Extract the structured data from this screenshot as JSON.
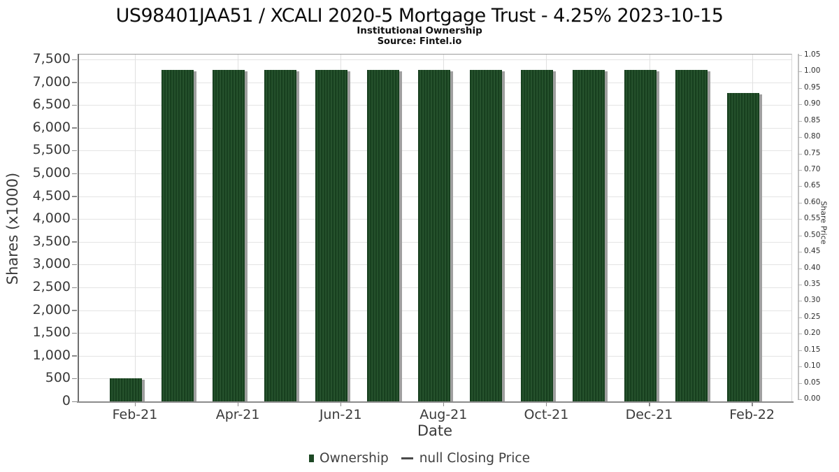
{
  "title": "US98401JAA51 / XCALI 2020-5 Mortgage Trust - 4.25% 2023-10-15",
  "subtitle": "Institutional Ownership",
  "source": "Source: Fintel.io",
  "colors": {
    "bar": "#1d4824",
    "bar_light": "#2d5a34",
    "bar_dark": "#12381a",
    "bar_shadow": "#9f9f9f",
    "legend_square": "#1d4824",
    "legend_line": "#4a4a4a",
    "grid": "#e4e4e4",
    "axis": "#8a8a8a",
    "tick_text": "#3a3a3a"
  },
  "chart_data": {
    "type": "bar",
    "title": "US98401JAA51 / XCALI 2020-5 Mortgage Trust - 4.25% 2023-10-15",
    "subtitle": "Institutional Ownership",
    "source": "Source: Fintel.io",
    "categories": [
      "Feb-21",
      "Mar-21",
      "Apr-21",
      "May-21",
      "Jun-21",
      "Jul-21",
      "Aug-21",
      "Sep-21",
      "Oct-21",
      "Nov-21",
      "Dec-21",
      "Jan-22",
      "Feb-22"
    ],
    "series": [
      {
        "name": "Ownership",
        "type": "bar",
        "values": [
          500,
          7270,
          7270,
          7270,
          7270,
          7270,
          7270,
          7270,
          7270,
          7270,
          7270,
          7270,
          6770
        ]
      },
      {
        "name": "null Closing Price",
        "type": "line",
        "values": []
      }
    ],
    "left_axis": {
      "label": "Shares (x1000)",
      "min": 0,
      "max": 7500,
      "step": 500
    },
    "right_axis": {
      "label": "Share Price",
      "min": 0.0,
      "max": 1.05,
      "step": 0.05
    },
    "x_axis": {
      "label": "Date",
      "tick_labels": [
        "Feb-21",
        "Apr-21",
        "Jun-21",
        "Aug-21",
        "Oct-21",
        "Dec-21",
        "Feb-22"
      ],
      "tick_bar_indices": [
        0,
        2,
        4,
        6,
        8,
        10,
        12
      ]
    },
    "legend": [
      {
        "label": "Ownership",
        "marker": "square"
      },
      {
        "label": "null Closing Price",
        "marker": "line"
      }
    ],
    "legend_position": "bottom",
    "grid": true
  }
}
